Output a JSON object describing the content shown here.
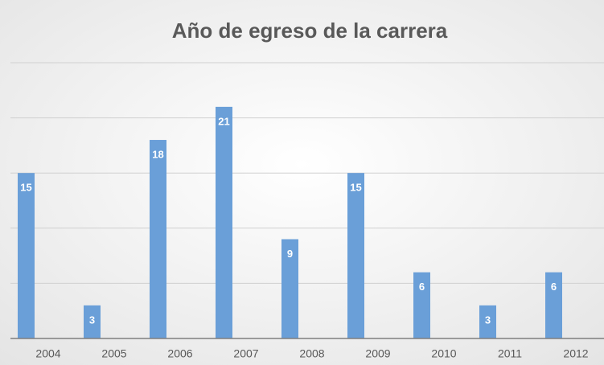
{
  "chart_data": {
    "type": "bar",
    "title": "Año de egreso de la carrera",
    "categories": [
      "2004",
      "2005",
      "2006",
      "2007",
      "2008",
      "2009",
      "2010",
      "2011",
      "2012"
    ],
    "values": [
      15,
      3,
      18,
      21,
      9,
      15,
      6,
      3,
      6
    ],
    "color": "#6a9fd8",
    "ylim": [
      0,
      25
    ],
    "yticks": [
      0,
      5,
      10,
      15,
      20,
      25
    ],
    "grid": true
  }
}
